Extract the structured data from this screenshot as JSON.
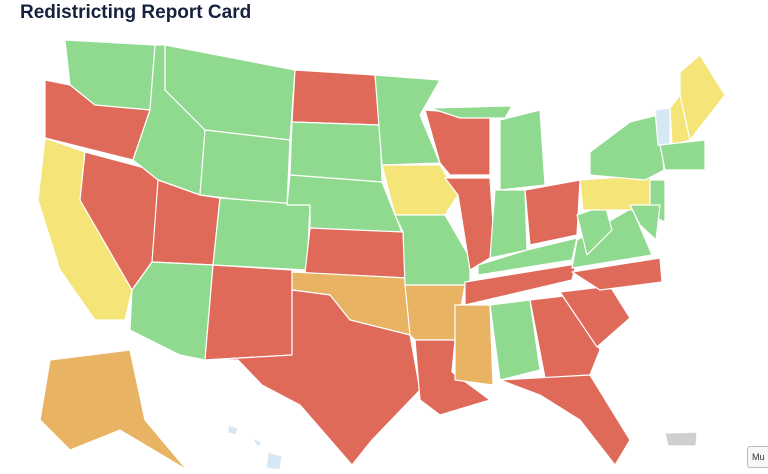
{
  "title": "Redistricting Report Card",
  "button": "Mu",
  "state_colors": [
    "#8fda8f",
    "#e06a5a",
    "#f5e579",
    "#e06a5a",
    "#8fda8f",
    "#8fda8f",
    "#8fda8f",
    "#e06a5a",
    "#8fda8f",
    "#8fda8f",
    "#e06a5a",
    "#e06a5a",
    "#8fda8f",
    "#8fda8f",
    "#e06a5a",
    "#e8b464",
    "#e06a5a",
    "#8fda8f",
    "#f5e579",
    "#8fda8f",
    "#e8b464",
    "#e06a5a",
    "#e06a5a",
    "#e06a5a",
    "#8fda8f",
    "#8fda8f",
    "#8fda8f",
    "#e06a5a",
    "#8fda8f",
    "#e06a5a",
    "#e8b464",
    "#8fda8f",
    "#e06a5a",
    "#e06a5a",
    "#e06a5a",
    "#e06a5a",
    "#8fda8f",
    "#8fda8f",
    "#f5e579",
    "#8fda8f",
    "#8fda8f",
    "#d6e8f4",
    "#f5e579",
    "#f5e579",
    "#8fda8f",
    "#8fda8f",
    "#e8b464",
    "#d6e8f4",
    "#d6e8f4",
    "#d6e8f4",
    "#cfcfcf"
  ]
}
